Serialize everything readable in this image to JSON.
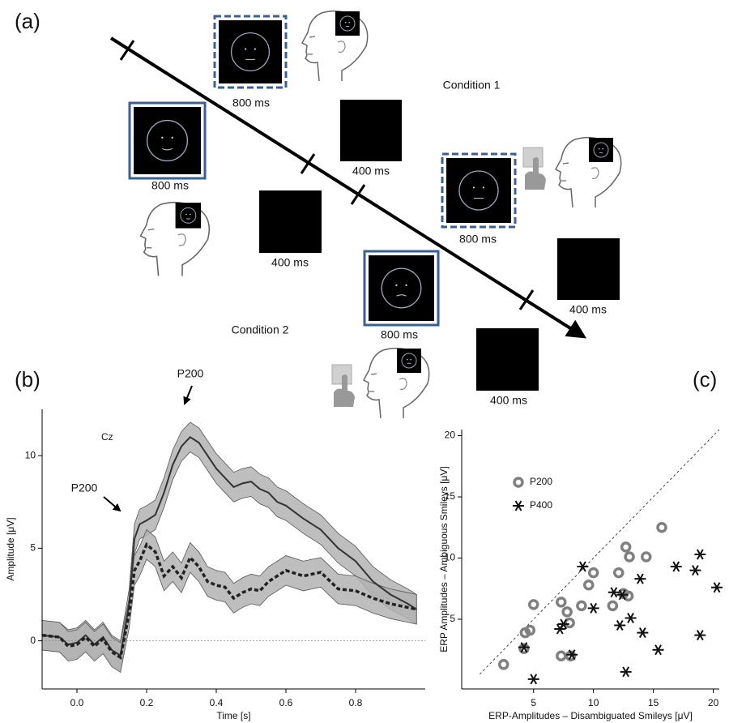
{
  "panel_a": {
    "label": "(a)",
    "condition_1": "Condition 1",
    "condition_2": "Condition 2",
    "durations": [
      "800 ms",
      "800 ms",
      "400 ms",
      "400 ms",
      "800 ms",
      "800 ms",
      "400 ms",
      "400 ms"
    ]
  },
  "chart_data": [
    {
      "type": "line",
      "panel_label": "(b)",
      "channel": "Cz",
      "x_label": "Time [s]",
      "y_label": "Amplitude [μV]",
      "annotations": [
        "P200",
        "P200"
      ],
      "x": [
        -0.1,
        -0.05,
        -0.025,
        0,
        0.025,
        0.05,
        0.075,
        0.1,
        0.125,
        0.15,
        0.165,
        0.18,
        0.2,
        0.225,
        0.25,
        0.275,
        0.3,
        0.325,
        0.35,
        0.375,
        0.4,
        0.425,
        0.45,
        0.475,
        0.5,
        0.525,
        0.55,
        0.575,
        0.6,
        0.65,
        0.7,
        0.75,
        0.8,
        0.85,
        0.9,
        0.95,
        0.975
      ],
      "series": [
        {
          "color": "#333333",
          "line_style": "solid",
          "band_color": "#b3b3b3",
          "error": 0.8,
          "values": [
            0.3,
            0.2,
            -0.2,
            -0.1,
            0.3,
            -0.2,
            0.2,
            -0.5,
            -0.8,
            2.0,
            5.5,
            6.3,
            6.5,
            6.8,
            8.0,
            9.5,
            10.5,
            11.0,
            10.7,
            10.0,
            9.3,
            8.8,
            8.3,
            8.5,
            8.6,
            8.2,
            8.0,
            7.5,
            7.3,
            6.6,
            6.0,
            5.0,
            4.3,
            3.2,
            2.5,
            2.0,
            1.7
          ]
        },
        {
          "color": "#222222",
          "line_style": "dashed",
          "band_color": "#b3b3b3",
          "error": 0.8,
          "values": [
            0.3,
            0.2,
            -0.3,
            -0.2,
            0.2,
            -0.3,
            0.1,
            -0.6,
            -0.9,
            1.5,
            3.8,
            4.3,
            5.2,
            4.8,
            3.5,
            4.0,
            3.4,
            4.5,
            4.0,
            3.2,
            3.0,
            2.9,
            2.3,
            2.6,
            2.8,
            2.7,
            3.2,
            3.5,
            3.8,
            3.5,
            3.7,
            2.8,
            2.7,
            2.3,
            2.0,
            1.8,
            1.7
          ]
        }
      ],
      "xlim": [
        -0.1,
        1.0
      ],
      "xticks": [
        {
          "value": 0,
          "label": "0.0"
        },
        0.2,
        0.4,
        0.6,
        0.8
      ],
      "ylim": [
        -2.6,
        12.5
      ],
      "yticks": [
        0,
        5,
        10
      ],
      "zero_line": true
    },
    {
      "type": "scatter",
      "panel_label": "(c)",
      "x_label": "ERP-Amplitudes – Disambiguated Smileys [μV]",
      "y_label": "ERP Amplitudes – Ambiguous Smileys [μV]",
      "series": [
        {
          "name": "P200",
          "marker": "circle",
          "color": "#808080",
          "x": [
            2.5,
            4.2,
            4.3,
            4.7,
            5,
            7.3,
            7.3,
            7.8,
            8,
            8.1,
            9,
            9.6,
            10,
            11.6,
            12.1,
            12.5,
            12.9,
            12.7,
            13,
            14.4,
            15.7
          ],
          "values": [
            1.3,
            2.6,
            3.9,
            4.1,
            6.2,
            2,
            6.4,
            5.6,
            4.7,
            2,
            6.1,
            7.8,
            8.8,
            6.1,
            8.8,
            7.1,
            6.9,
            10.9,
            10.1,
            10.1,
            12.5
          ]
        },
        {
          "name": "P400",
          "marker": "star",
          "color": "#111111",
          "x": [
            4.2,
            5,
            7.2,
            7.5,
            8.2,
            9.1,
            10,
            11.7,
            12.2,
            12.4,
            12.7,
            13.1,
            13.9,
            14.1,
            15.4,
            16.9,
            18.5,
            18.9,
            18.9,
            20.3
          ],
          "values": [
            2.7,
            0.1,
            4.2,
            4.6,
            2.1,
            9.3,
            5.9,
            7.2,
            4.5,
            7,
            0.7,
            5.1,
            8.3,
            3.9,
            2.5,
            9.3,
            9,
            10.3,
            3.7,
            7.6
          ]
        }
      ],
      "xlim": [
        -1,
        20.5
      ],
      "xticks": [
        5,
        10,
        15,
        20
      ],
      "ylim": [
        -0.7,
        20.5
      ],
      "yticks": [
        5,
        10,
        15,
        20
      ],
      "identity_line": true
    }
  ]
}
